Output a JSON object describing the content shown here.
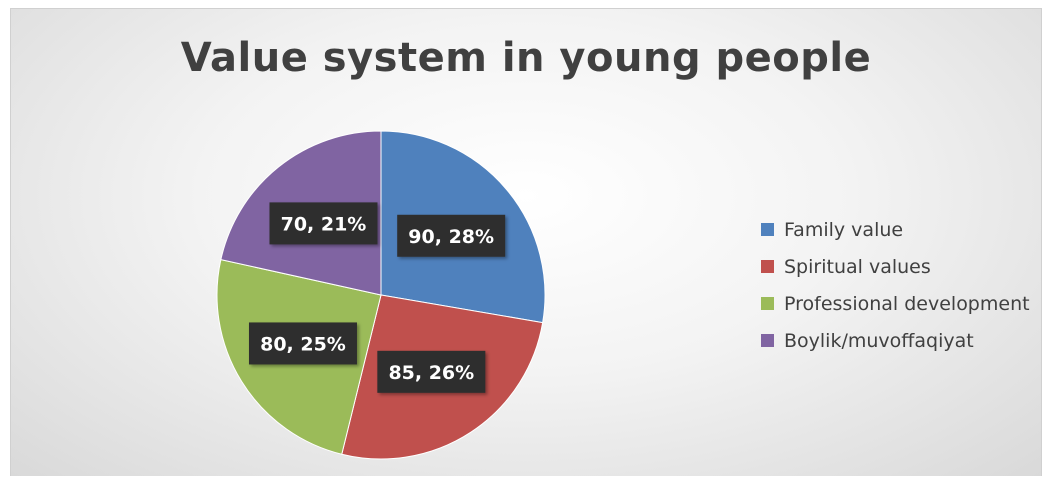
{
  "chart_data": {
    "type": "pie",
    "title": "Value system in young people",
    "series": [
      {
        "name": "",
        "slices": [
          {
            "label": "Family value",
            "value": 90,
            "percent": 28,
            "data_label": "90, 28%",
            "color": "#4f81bd"
          },
          {
            "label": "Spiritual values",
            "value": 85,
            "percent": 26,
            "data_label": "85, 26%",
            "color": "#c0504d"
          },
          {
            "label": "Professional development",
            "value": 80,
            "percent": 25,
            "data_label": "80, 25%",
            "color": "#9bbb59"
          },
          {
            "label": "Boylik/muvoffaqiyat",
            "value": 70,
            "percent": 21,
            "data_label": "70, 21%",
            "color": "#8064a2"
          }
        ]
      }
    ],
    "legend_position": "right",
    "start_angle": "12 o'clock",
    "direction": "clockwise"
  }
}
